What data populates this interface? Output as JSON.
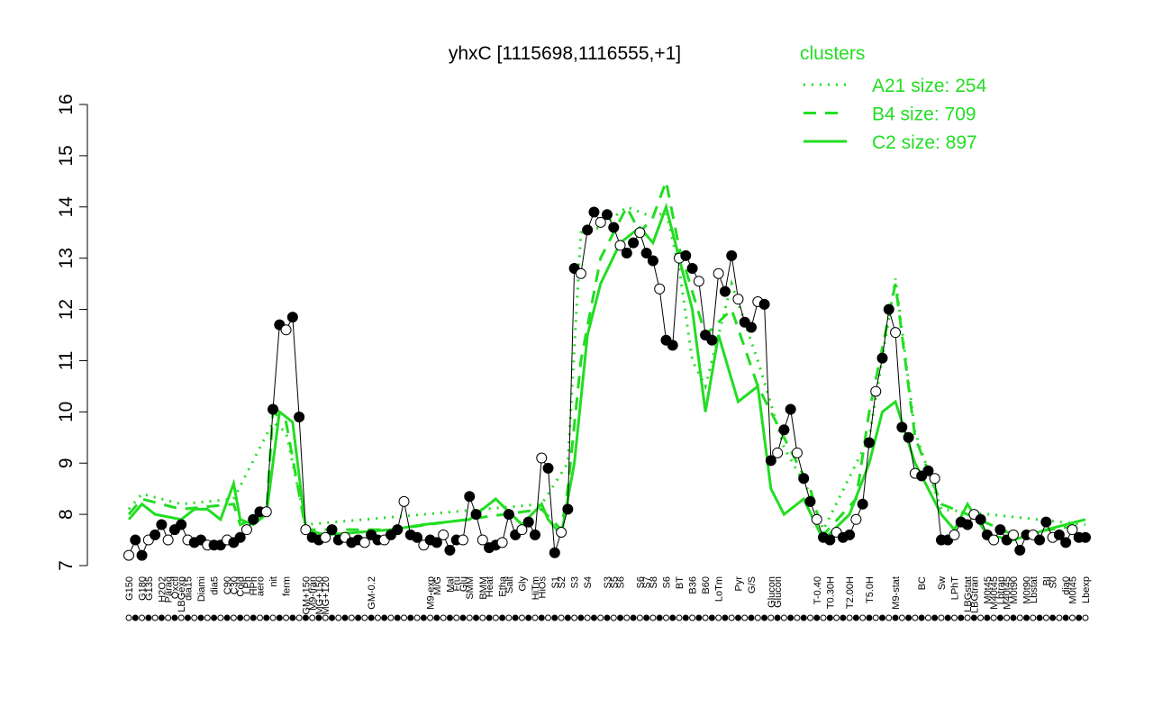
{
  "chart_data": {
    "type": "line",
    "title": "yhxC [1115698,1116555,+1]",
    "categories": [
      "G150",
      null,
      "G180",
      "G135",
      null,
      "H2O2",
      "Paraq",
      "Oxctl",
      "LBGexp",
      "dia15",
      null,
      "Diami",
      null,
      "dia5",
      null,
      "C90",
      "C30",
      "Cold",
      "LPh",
      "HPh",
      "aero",
      null,
      "nit",
      null,
      "ferm",
      null,
      null,
      "GM+150",
      "M9-tran",
      "MG+150",
      "MG+120",
      null,
      null,
      null,
      null,
      null,
      null,
      "GM-0.2",
      null,
      null,
      null,
      null,
      null,
      null,
      null,
      null,
      "M9-exp",
      "M/G",
      null,
      "Mal",
      "Fru",
      "Glu",
      "SMM",
      null,
      "BMM",
      "Heat",
      null,
      "Etha",
      "Salt",
      null,
      "Gly",
      null,
      "HiTm",
      "HiOs",
      null,
      "S1",
      "S2",
      null,
      "S3",
      null,
      "S4",
      null,
      null,
      "S3",
      "S5",
      "S6",
      null,
      null,
      "S6",
      "S7",
      "S8",
      null,
      "S6",
      null,
      "BT",
      null,
      "B36",
      null,
      "B60",
      null,
      "LoTm",
      null,
      null,
      "Pyr",
      null,
      "G/S",
      null,
      null,
      "Glucon",
      "Glucon",
      null,
      null,
      null,
      null,
      null,
      "T-0.40",
      null,
      "T0.30H",
      null,
      null,
      "T2.00H",
      null,
      null,
      "T5.0H",
      null,
      null,
      null,
      "M9-stat",
      null,
      null,
      null,
      "BC",
      null,
      null,
      "Sw",
      null,
      "LPhT",
      null,
      "LBGstat",
      "LBGtran",
      null,
      "M0t45",
      "M40t45",
      "Lbtran",
      "M40t45",
      "M0t90",
      null,
      "M0t90",
      "Lbstat",
      null,
      "BI",
      "S0",
      null,
      "dia0",
      "M0t45",
      null,
      "Lbexp"
    ],
    "values": [
      7.2,
      7.5,
      7.2,
      7.5,
      7.6,
      7.8,
      7.5,
      7.7,
      7.8,
      7.5,
      7.45,
      7.5,
      7.4,
      7.4,
      7.4,
      7.5,
      7.45,
      7.55,
      7.7,
      7.9,
      8.05,
      8.05,
      10.05,
      11.7,
      11.6,
      11.85,
      9.9,
      7.7,
      7.55,
      7.5,
      7.55,
      7.7,
      7.5,
      7.55,
      7.45,
      7.5,
      7.45,
      7.6,
      7.5,
      7.5,
      7.6,
      7.7,
      8.25,
      7.6,
      7.55,
      7.4,
      7.5,
      7.45,
      7.6,
      7.3,
      7.5,
      7.5,
      8.35,
      8.0,
      7.5,
      7.35,
      7.4,
      7.45,
      8.0,
      7.6,
      7.7,
      7.85,
      7.6,
      9.1,
      8.9,
      7.25,
      7.65,
      8.1,
      12.8,
      12.7,
      13.55,
      13.9,
      13.7,
      13.85,
      13.6,
      13.25,
      13.1,
      13.3,
      13.5,
      13.1,
      12.95,
      12.4,
      11.4,
      11.3,
      13.0,
      13.05,
      12.8,
      12.55,
      11.5,
      11.4,
      12.7,
      12.35,
      13.05,
      12.2,
      11.75,
      11.65,
      12.15,
      12.1,
      9.05,
      9.2,
      9.65,
      10.05,
      9.2,
      8.7,
      8.25,
      7.9,
      7.55,
      7.5,
      7.65,
      7.55,
      7.6,
      7.9,
      8.2,
      9.4,
      10.4,
      11.05,
      12.0,
      11.55,
      9.7,
      9.5,
      8.8,
      8.75,
      8.85,
      8.7,
      7.5,
      7.5,
      7.6,
      7.85,
      7.8,
      8.0,
      7.9,
      7.6,
      7.5,
      7.7,
      7.5,
      7.6,
      7.3,
      7.6,
      7.6,
      7.5,
      7.85,
      7.55,
      7.6,
      7.45,
      7.7,
      7.55,
      7.55
    ],
    "clusters_title": "clusters",
    "clusters": [
      {
        "name": "A21 size: 254",
        "color": "#22dd22",
        "dash": "dotted",
        "x": [
          0,
          2,
          8,
          16,
          22,
          24,
          27,
          63,
          67,
          69,
          72,
          76,
          80,
          82,
          84,
          86,
          88,
          92,
          96,
          100,
          104,
          106,
          113,
          117,
          120,
          124,
          146
        ],
        "values": [
          8.1,
          8.4,
          8.2,
          8.3,
          9.8,
          9.6,
          7.8,
          8.2,
          9.0,
          13.5,
          13.6,
          14.0,
          13.8,
          13.9,
          12.8,
          11.0,
          10.5,
          12.5,
          11.0,
          9.3,
          8.4,
          7.7,
          9.5,
          12.6,
          9.6,
          8.1,
          7.8
        ]
      },
      {
        "name": "B4 size: 709",
        "color": "#22dd22",
        "dash": "dashed",
        "x": [
          0,
          2,
          8,
          16,
          17,
          21,
          22,
          24,
          27,
          40,
          63,
          66,
          67,
          69,
          72,
          76,
          78,
          80,
          82,
          84,
          88,
          92,
          96,
          100,
          104,
          106,
          111,
          113,
          117,
          120,
          124,
          128,
          135,
          146
        ],
        "values": [
          8.0,
          8.3,
          8.1,
          8.2,
          7.8,
          8.0,
          10.0,
          9.8,
          7.7,
          7.7,
          8.1,
          7.7,
          8.5,
          11.0,
          13.0,
          14.0,
          13.5,
          13.8,
          14.5,
          13.2,
          11.5,
          12.0,
          10.5,
          9.5,
          8.5,
          7.6,
          8.3,
          10.0,
          12.5,
          9.5,
          8.2,
          8.0,
          7.6,
          7.8
        ]
      },
      {
        "name": "C2 size: 897",
        "color": "#22dd22",
        "dash": "solid",
        "x": [
          0,
          2,
          4,
          8,
          10,
          12,
          14,
          16,
          17,
          19,
          21,
          22,
          23,
          25,
          27,
          30,
          40,
          45,
          52,
          56,
          60,
          63,
          64,
          66,
          68,
          70,
          72,
          75,
          78,
          80,
          82,
          84,
          86,
          88,
          90,
          93,
          96,
          98,
          100,
          103,
          106,
          110,
          113,
          115,
          117,
          120,
          124,
          126,
          128,
          131,
          135,
          140,
          146
        ],
        "values": [
          7.9,
          8.2,
          8.0,
          7.9,
          8.1,
          8.1,
          7.9,
          8.6,
          7.9,
          7.8,
          8.0,
          9.0,
          10.0,
          9.8,
          7.7,
          7.6,
          7.7,
          7.8,
          7.9,
          8.3,
          7.8,
          8.2,
          7.9,
          7.6,
          9.0,
          11.5,
          12.5,
          13.3,
          13.6,
          13.3,
          14.0,
          13.0,
          12.0,
          10.0,
          11.5,
          10.2,
          10.5,
          8.5,
          8.0,
          8.3,
          7.5,
          8.0,
          9.0,
          10.0,
          10.2,
          9.0,
          8.0,
          7.7,
          8.2,
          7.6,
          7.5,
          7.7,
          7.9
        ]
      }
    ],
    "ylim": [
      7,
      16
    ],
    "yticks": [
      7,
      8,
      9,
      10,
      11,
      12,
      13,
      14,
      15,
      16
    ]
  }
}
